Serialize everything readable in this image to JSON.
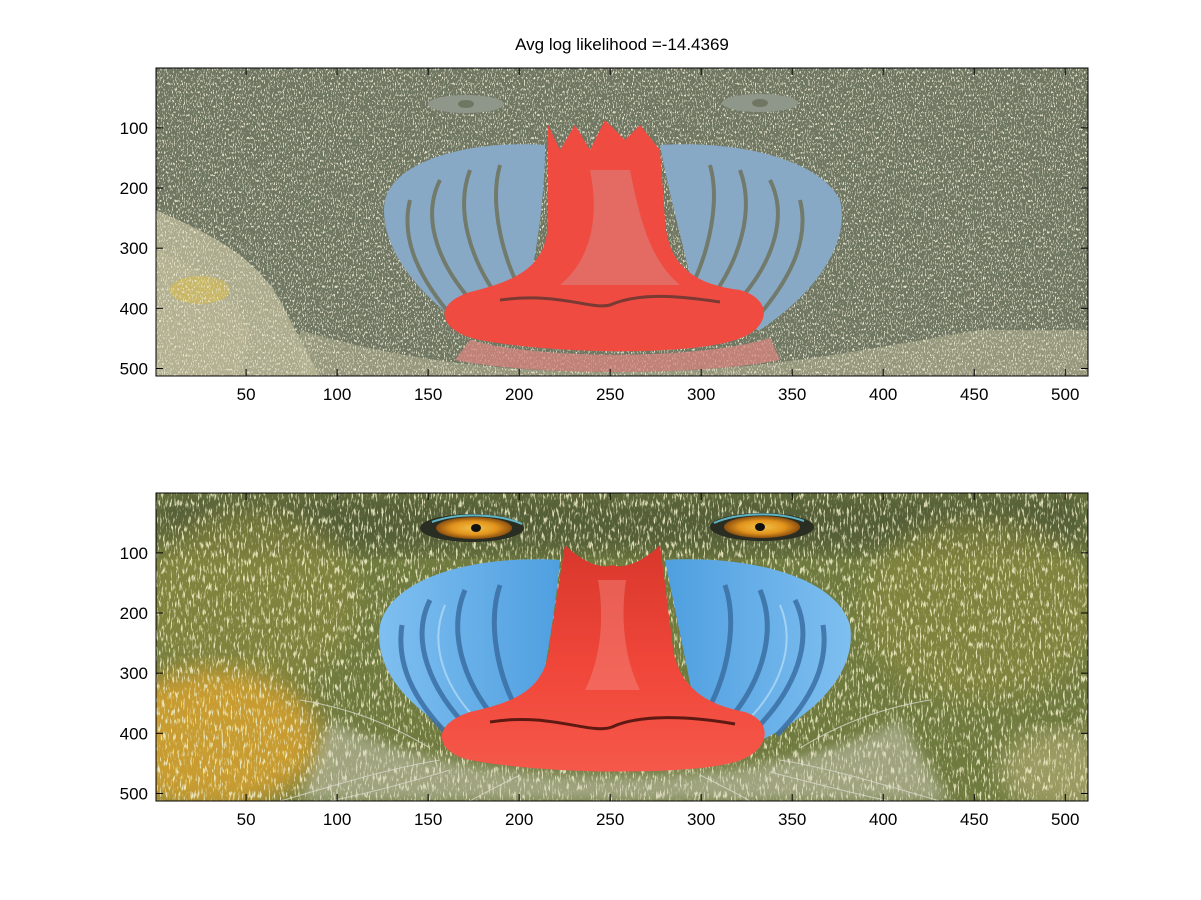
{
  "figure": {
    "title": "Avg log likelihood =-14.4369",
    "palette": {
      "top": {
        "background": "#6f7662",
        "face_blue": "#88a9c6",
        "face_red": "#ef4b40",
        "red_shade": "#d98780",
        "fur_tan": "#b7b595",
        "fur_yellow": "#d3b957",
        "eye_grey": "#8f968a"
      },
      "bottom": {
        "fur_green": "#6f7a3f",
        "fur_dark": "#3e4633",
        "fur_olive": "#8b8a3c",
        "fur_orange": "#d8a22f",
        "face_blue": "#59a7e3",
        "face_blue_light": "#9fd2f4",
        "nose_red": "#f0473a",
        "nose_dark": "#c72e22",
        "eye_orange": "#e2941c",
        "whisker": "#d9d8cc",
        "pupil": "#111111"
      }
    },
    "panels": [
      {
        "name": "quantized-image",
        "x_ticks": [
          50,
          100,
          150,
          200,
          250,
          300,
          350,
          400,
          450,
          500
        ],
        "y_ticks": [
          100,
          200,
          300,
          400,
          500
        ],
        "xlim": [
          0.5,
          512.5
        ],
        "ylim": [
          0.5,
          512.5
        ]
      },
      {
        "name": "original-image",
        "x_ticks": [
          50,
          100,
          150,
          200,
          250,
          300,
          350,
          400,
          450,
          500
        ],
        "y_ticks": [
          100,
          200,
          300,
          400,
          500
        ],
        "xlim": [
          0.5,
          512.5
        ],
        "ylim": [
          0.5,
          512.5
        ]
      }
    ]
  }
}
